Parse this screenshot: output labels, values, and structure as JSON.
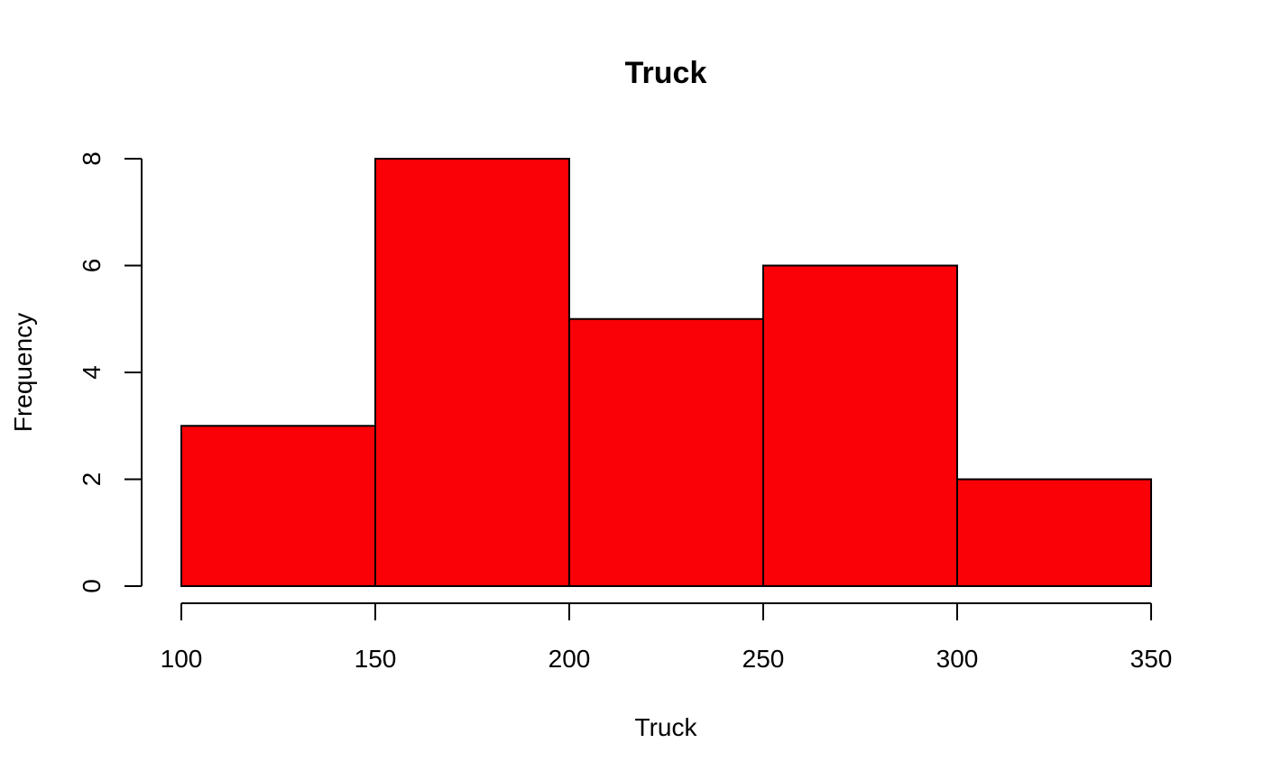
{
  "chart_data": {
    "type": "histogram",
    "title": "Truck",
    "xlabel": "Truck",
    "ylabel": "Frequency",
    "bins": [
      {
        "start": 100,
        "end": 150,
        "count": 3
      },
      {
        "start": 150,
        "end": 200,
        "count": 8
      },
      {
        "start": 200,
        "end": 250,
        "count": 5
      },
      {
        "start": 250,
        "end": 300,
        "count": 6
      },
      {
        "start": 300,
        "end": 350,
        "count": 2
      }
    ],
    "xlim": [
      100,
      350
    ],
    "ylim": [
      0,
      8
    ],
    "xticks": [
      100,
      150,
      200,
      250,
      300,
      350
    ],
    "yticks": [
      0,
      2,
      4,
      6,
      8
    ],
    "bar_color": "#fa0007",
    "border_color": "#000000",
    "grid": false,
    "legend": "none"
  }
}
